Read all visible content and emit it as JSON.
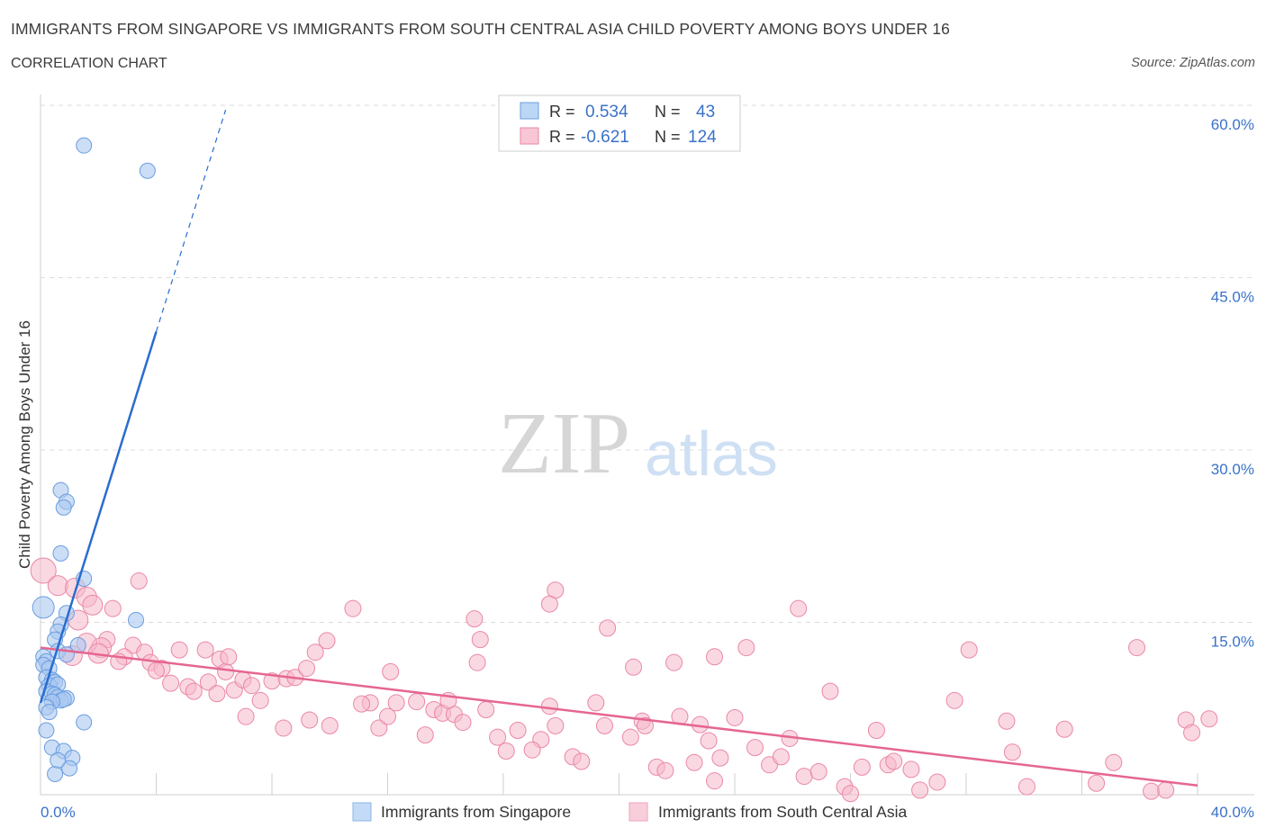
{
  "title": "IMMIGRANTS FROM SINGAPORE VS IMMIGRANTS FROM SOUTH CENTRAL ASIA CHILD POVERTY AMONG BOYS UNDER 16",
  "subtitle": "CORRELATION CHART",
  "source": "Source: ZipAtlas.com",
  "watermark": {
    "zip": "ZIP",
    "atlas": "atlas"
  },
  "legend_box": {
    "rows": [
      {
        "r_label": "R =",
        "r_value": "0.534",
        "n_label": "N =",
        "n_value": "43"
      },
      {
        "r_label": "R =",
        "r_value": "-0.621",
        "n_label": "N =",
        "n_value": "124"
      }
    ]
  },
  "chart_data": {
    "type": "scatter",
    "ylabel": "Child Poverty Among Boys Under 16",
    "xlim": [
      0,
      40
    ],
    "ylim": [
      0,
      60
    ],
    "x_tick_labels": [
      "0.0%",
      "40.0%"
    ],
    "y_ticks": [
      15,
      30,
      45,
      60
    ],
    "y_tick_labels": [
      "15.0%",
      "30.0%",
      "45.0%",
      "60.0%"
    ],
    "grid": true,
    "legend": [
      "Immigrants from Singapore",
      "Immigrants from South Central Asia"
    ],
    "colors": {
      "singapore_fill": "#aac8f0",
      "singapore_stroke": "#6a9de0",
      "singapore_line": "#2a6ccf",
      "sca_fill": "#f6b8ca",
      "sca_stroke": "#ea87a6",
      "sca_line": "#e56691",
      "tick_label": "#3a72c8",
      "grid": "#dddddd"
    },
    "series": [
      {
        "name": "Immigrants from Singapore",
        "r": 0.534,
        "n": 43,
        "trend": {
          "x0": 0.0,
          "y0": 8.0,
          "x1": 4.0,
          "y1": 40.3,
          "dash_x1": 6.4,
          "dash_y1": 59.6
        },
        "points": [
          [
            1.5,
            56.5
          ],
          [
            3.7,
            54.3
          ],
          [
            0.7,
            26.5
          ],
          [
            0.9,
            25.5
          ],
          [
            0.8,
            25.0
          ],
          [
            0.7,
            21.0
          ],
          [
            1.5,
            18.8
          ],
          [
            0.1,
            16.3
          ],
          [
            0.9,
            15.8
          ],
          [
            3.3,
            15.2
          ],
          [
            0.7,
            14.8
          ],
          [
            0.6,
            14.2
          ],
          [
            0.5,
            13.5
          ],
          [
            1.3,
            13.0
          ],
          [
            0.6,
            12.5
          ],
          [
            0.9,
            12.2
          ],
          [
            0.1,
            12.0
          ],
          [
            0.2,
            11.6
          ],
          [
            0.1,
            11.3
          ],
          [
            0.3,
            11.0
          ],
          [
            0.2,
            10.2
          ],
          [
            0.4,
            10.0
          ],
          [
            0.5,
            9.8
          ],
          [
            0.3,
            9.5
          ],
          [
            0.6,
            9.6
          ],
          [
            0.2,
            9.0
          ],
          [
            0.4,
            8.8
          ],
          [
            0.5,
            8.7
          ],
          [
            0.6,
            8.5
          ],
          [
            0.9,
            8.4
          ],
          [
            0.7,
            8.2
          ],
          [
            0.8,
            8.3
          ],
          [
            0.4,
            8.1
          ],
          [
            0.2,
            7.6
          ],
          [
            0.3,
            7.2
          ],
          [
            0.2,
            5.6
          ],
          [
            1.5,
            6.3
          ],
          [
            0.4,
            4.1
          ],
          [
            0.8,
            3.8
          ],
          [
            1.1,
            3.2
          ],
          [
            1.0,
            2.3
          ],
          [
            0.5,
            1.8
          ],
          [
            0.6,
            3.0
          ]
        ]
      },
      {
        "name": "Immigrants from South Central Asia",
        "r": -0.621,
        "n": 124,
        "trend": {
          "x0": 0.0,
          "y0": 12.8,
          "x1": 40.0,
          "y1": 0.8
        },
        "points": [
          [
            0.1,
            19.5
          ],
          [
            0.6,
            18.2
          ],
          [
            1.2,
            18.0
          ],
          [
            1.6,
            17.2
          ],
          [
            3.4,
            18.6
          ],
          [
            1.8,
            16.5
          ],
          [
            2.5,
            16.2
          ],
          [
            1.3,
            15.2
          ],
          [
            2.3,
            13.5
          ],
          [
            3.2,
            13.0
          ],
          [
            2.1,
            12.8
          ],
          [
            1.6,
            13.2
          ],
          [
            2.0,
            12.3
          ],
          [
            2.9,
            12.0
          ],
          [
            3.6,
            12.4
          ],
          [
            3.8,
            11.5
          ],
          [
            4.2,
            11.0
          ],
          [
            4.0,
            10.8
          ],
          [
            4.8,
            12.6
          ],
          [
            5.7,
            12.6
          ],
          [
            6.2,
            11.8
          ],
          [
            6.4,
            10.7
          ],
          [
            4.5,
            9.7
          ],
          [
            5.1,
            9.4
          ],
          [
            5.3,
            9.0
          ],
          [
            5.8,
            9.8
          ],
          [
            6.1,
            8.8
          ],
          [
            6.7,
            9.1
          ],
          [
            7.0,
            10.0
          ],
          [
            7.3,
            9.5
          ],
          [
            7.6,
            8.2
          ],
          [
            7.1,
            6.8
          ],
          [
            8.0,
            9.9
          ],
          [
            8.5,
            10.1
          ],
          [
            8.8,
            10.2
          ],
          [
            9.2,
            11.0
          ],
          [
            9.5,
            12.4
          ],
          [
            9.9,
            13.4
          ],
          [
            10.8,
            16.2
          ],
          [
            11.4,
            8.0
          ],
          [
            11.1,
            7.9
          ],
          [
            12.1,
            10.7
          ],
          [
            11.7,
            5.8
          ],
          [
            12.3,
            8.0
          ],
          [
            13.0,
            8.1
          ],
          [
            13.3,
            5.2
          ],
          [
            13.6,
            7.4
          ],
          [
            13.9,
            7.1
          ],
          [
            14.3,
            7.0
          ],
          [
            14.6,
            6.3
          ],
          [
            14.1,
            8.2
          ],
          [
            15.1,
            11.5
          ],
          [
            15.4,
            7.4
          ],
          [
            15.8,
            5.0
          ],
          [
            16.1,
            3.8
          ],
          [
            15.0,
            15.3
          ],
          [
            15.2,
            13.5
          ],
          [
            16.5,
            5.6
          ],
          [
            17.3,
            4.8
          ],
          [
            17.0,
            3.9
          ],
          [
            17.8,
            6.0
          ],
          [
            17.6,
            7.7
          ],
          [
            18.4,
            3.3
          ],
          [
            18.7,
            2.9
          ],
          [
            19.5,
            6.0
          ],
          [
            19.6,
            14.5
          ],
          [
            19.2,
            8.0
          ],
          [
            20.4,
            5.0
          ],
          [
            20.8,
            6.4
          ],
          [
            20.9,
            6.0
          ],
          [
            21.3,
            2.4
          ],
          [
            21.6,
            2.1
          ],
          [
            21.9,
            11.5
          ],
          [
            22.1,
            6.8
          ],
          [
            22.6,
            2.8
          ],
          [
            22.8,
            6.1
          ],
          [
            23.1,
            4.7
          ],
          [
            23.3,
            1.2
          ],
          [
            23.5,
            3.2
          ],
          [
            24.0,
            6.7
          ],
          [
            24.7,
            4.1
          ],
          [
            25.2,
            2.6
          ],
          [
            25.6,
            3.3
          ],
          [
            25.9,
            4.9
          ],
          [
            26.2,
            16.2
          ],
          [
            26.4,
            1.6
          ],
          [
            26.9,
            2.0
          ],
          [
            27.3,
            9.0
          ],
          [
            27.8,
            0.7
          ],
          [
            28.0,
            0.1
          ],
          [
            28.4,
            2.4
          ],
          [
            28.9,
            5.6
          ],
          [
            29.3,
            2.6
          ],
          [
            29.5,
            2.9
          ],
          [
            30.1,
            2.2
          ],
          [
            31.0,
            1.1
          ],
          [
            31.6,
            8.2
          ],
          [
            32.1,
            12.6
          ],
          [
            30.4,
            0.4
          ],
          [
            33.4,
            6.4
          ],
          [
            33.6,
            3.7
          ],
          [
            34.1,
            0.7
          ],
          [
            35.4,
            5.7
          ],
          [
            36.5,
            1.0
          ],
          [
            37.1,
            2.8
          ],
          [
            37.9,
            12.8
          ],
          [
            38.4,
            0.3
          ],
          [
            38.9,
            0.4
          ],
          [
            39.6,
            6.5
          ],
          [
            39.8,
            5.4
          ],
          [
            40.4,
            6.6
          ],
          [
            17.8,
            17.8
          ],
          [
            17.6,
            16.6
          ],
          [
            20.5,
            11.1
          ],
          [
            23.3,
            12.0
          ],
          [
            24.4,
            12.8
          ],
          [
            12.0,
            6.8
          ],
          [
            10.0,
            6.0
          ],
          [
            9.3,
            6.5
          ],
          [
            8.4,
            5.8
          ],
          [
            6.5,
            12.0
          ],
          [
            2.7,
            11.6
          ],
          [
            1.1,
            12.1
          ]
        ]
      }
    ]
  }
}
